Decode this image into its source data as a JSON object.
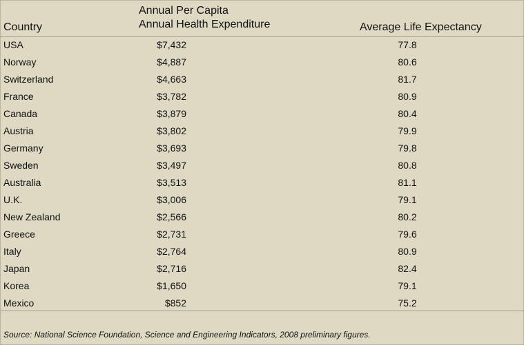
{
  "table": {
    "headers": {
      "country": "Country",
      "expenditure_line1": "Annual Per Capita",
      "expenditure_line2": "Annual Health Expenditure",
      "life": "Average Life Expectancy"
    },
    "rows": [
      {
        "country": "USA",
        "expenditure": "$7,432",
        "life": "77.8"
      },
      {
        "country": "Norway",
        "expenditure": "$4,887",
        "life": "80.6"
      },
      {
        "country": "Switzerland",
        "expenditure": "$4,663",
        "life": "81.7"
      },
      {
        "country": "France",
        "expenditure": "$3,782",
        "life": "80.9"
      },
      {
        "country": "Canada",
        "expenditure": "$3,879",
        "life": "80.4"
      },
      {
        "country": "Austria",
        "expenditure": "$3,802",
        "life": "79.9"
      },
      {
        "country": "Germany",
        "expenditure": "$3,693",
        "life": "79.8"
      },
      {
        "country": "Sweden",
        "expenditure": "$3,497",
        "life": "80.8"
      },
      {
        "country": "Australia",
        "expenditure": "$3,513",
        "life": "81.1"
      },
      {
        "country": "U.K.",
        "expenditure": "$3,006",
        "life": "79.1"
      },
      {
        "country": "New Zealand",
        "expenditure": "$2,566",
        "life": "80.2"
      },
      {
        "country": "Greece",
        "expenditure": "$2,731",
        "life": "79.6"
      },
      {
        "country": "Italy",
        "expenditure": "$2,764",
        "life": "80.9"
      },
      {
        "country": "Japan",
        "expenditure": "$2,716",
        "life": "82.4"
      },
      {
        "country": "Korea",
        "expenditure": "$1,650",
        "life": "79.1"
      },
      {
        "country": "Mexico",
        "expenditure": "$852",
        "life": "75.2"
      }
    ],
    "source": "Source: National Science Foundation, Science and Engineering Indicators, 2008 preliminary figures."
  },
  "colors": {
    "background": "#ddd9c3",
    "rule": "#9a9680"
  }
}
